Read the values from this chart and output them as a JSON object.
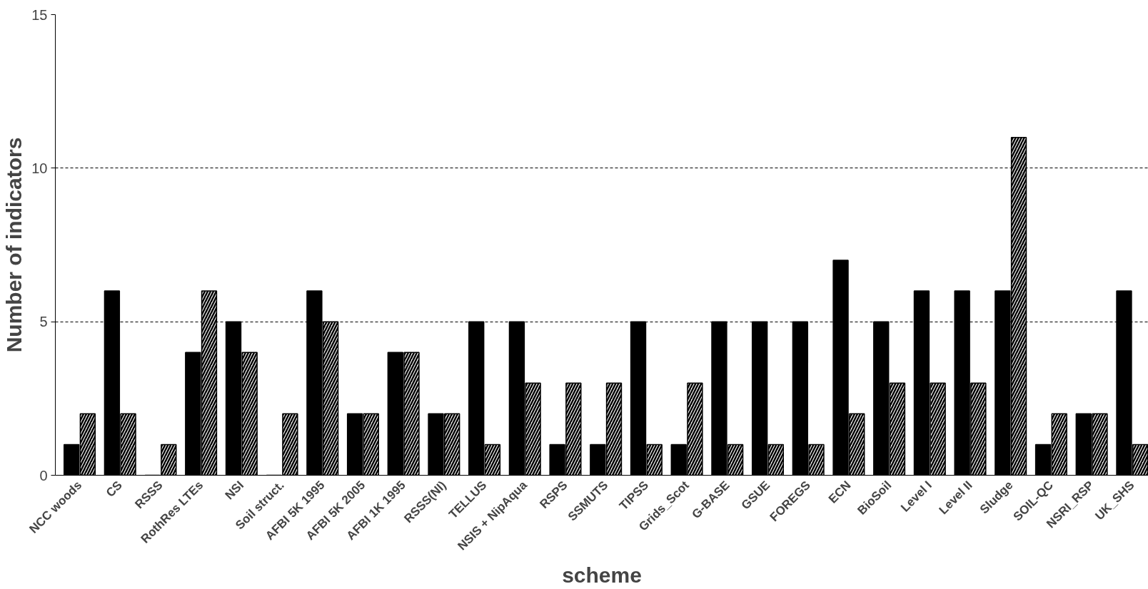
{
  "chart_data": {
    "type": "bar",
    "xlabel": "scheme",
    "ylabel": "Number of indicators",
    "categories": [
      "NCC woods",
      "CS",
      "RSSS",
      "RothRes LTEs",
      "NSI",
      "Soil struct.",
      "AFBI 5K 1995",
      "AFBI 5K 2005",
      "AFBI 1K 1995",
      "RSSS(NI)",
      "TELLUS",
      "NSIS + NipAqua",
      "RSPS",
      "SSMUTS",
      "TIPSS",
      "Grids_Scot",
      "G-BASE",
      "GSUE",
      "FOREGS",
      "ECN",
      "BioSoil",
      "Level I",
      "Level II",
      "Sludge",
      "SOIL-QC",
      "NSRI_RSP",
      "UK_SHS"
    ],
    "series": [
      {
        "color": "#000000",
        "values": [
          1,
          6,
          0,
          4,
          5,
          0,
          6,
          2,
          4,
          2,
          5,
          5,
          1,
          1,
          5,
          1,
          5,
          5,
          5,
          7,
          5,
          6,
          6,
          6,
          1,
          2,
          6
        ]
      },
      {
        "color": "#ffffff",
        "values": [
          2,
          2,
          1,
          6,
          4,
          2,
          5,
          2,
          4,
          2,
          1,
          3,
          3,
          3,
          1,
          3,
          1,
          1,
          1,
          2,
          3,
          3,
          3,
          11,
          2,
          2,
          1
        ]
      }
    ],
    "ylim": [
      0,
      15
    ],
    "yticks": [
      0,
      5,
      10,
      15
    ],
    "grid": "y"
  }
}
